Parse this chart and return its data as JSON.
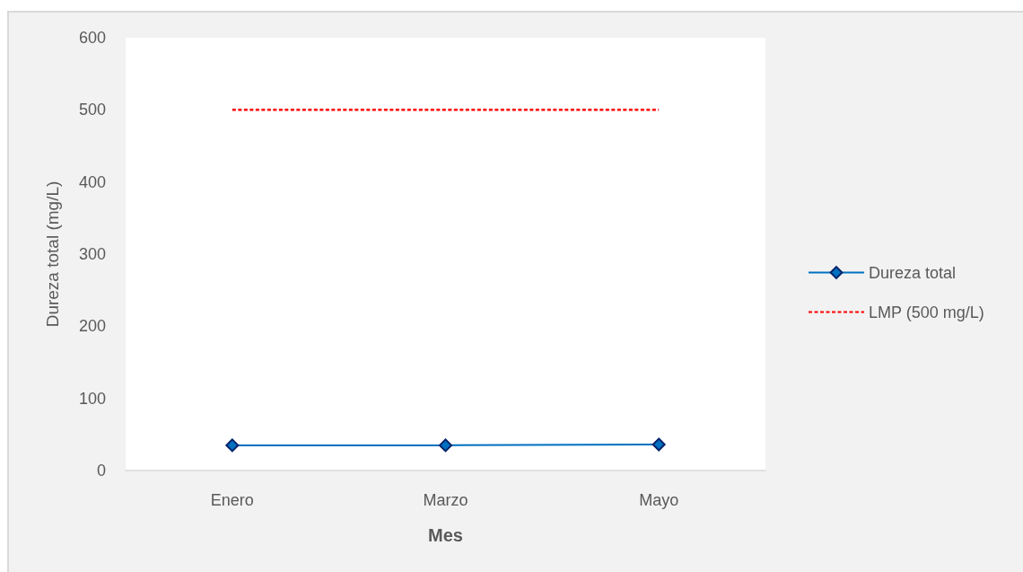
{
  "chart_data": {
    "type": "line",
    "xlabel": "Mes",
    "ylabel": "Dureza total (mg/L)",
    "categories": [
      "Enero",
      "Marzo",
      "Mayo"
    ],
    "series": [
      {
        "name": "Dureza total",
        "color": "#0070c0",
        "values": [
          35,
          35,
          36
        ],
        "marker": "diamond",
        "line_style": "solid"
      },
      {
        "name": "LMP (500 mg/L)",
        "color": "#ff0000",
        "values": [
          500,
          500,
          500
        ],
        "marker": "none",
        "line_style": "dashed"
      }
    ],
    "ylim": [
      0,
      600
    ],
    "yticks": [
      0,
      100,
      200,
      300,
      400,
      500,
      600
    ],
    "legend": "right"
  }
}
